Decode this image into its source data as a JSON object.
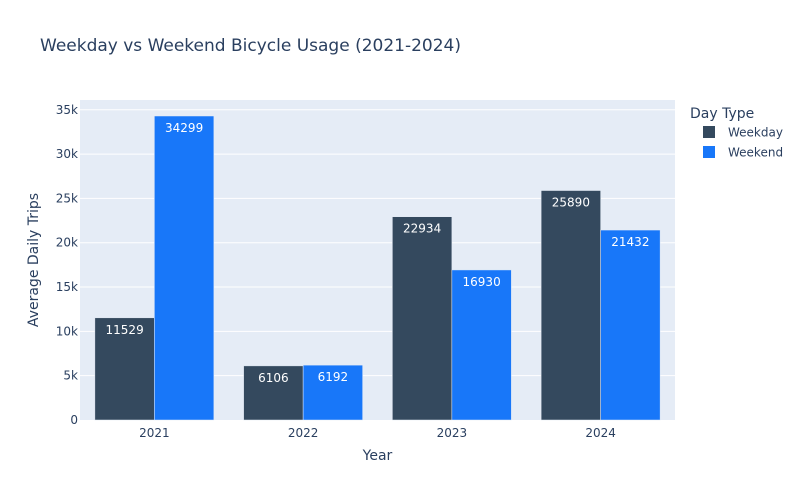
{
  "chart_data": {
    "type": "bar",
    "title": "Weekday vs Weekend Bicycle Usage (2021-2024)",
    "xlabel": "Year",
    "ylabel": "Average Daily Trips",
    "categories": [
      "2021",
      "2022",
      "2023",
      "2024"
    ],
    "series": [
      {
        "name": "Weekday",
        "color": "#34495e",
        "values": [
          11529,
          6106,
          22934,
          25890
        ]
      },
      {
        "name": "Weekend",
        "color": "#1877f9",
        "values": [
          34299,
          6192,
          16930,
          21432
        ]
      }
    ],
    "ylim": [
      0,
      36104
    ],
    "yticks": [
      0,
      5000,
      10000,
      15000,
      20000,
      25000,
      30000,
      35000
    ],
    "ytick_labels": [
      "0",
      "5k",
      "10k",
      "15k",
      "20k",
      "25k",
      "30k",
      "35k"
    ],
    "legend_title": "Day Type",
    "legend_position": "top-right",
    "grid": true,
    "background_color": "#e5ecf6"
  }
}
